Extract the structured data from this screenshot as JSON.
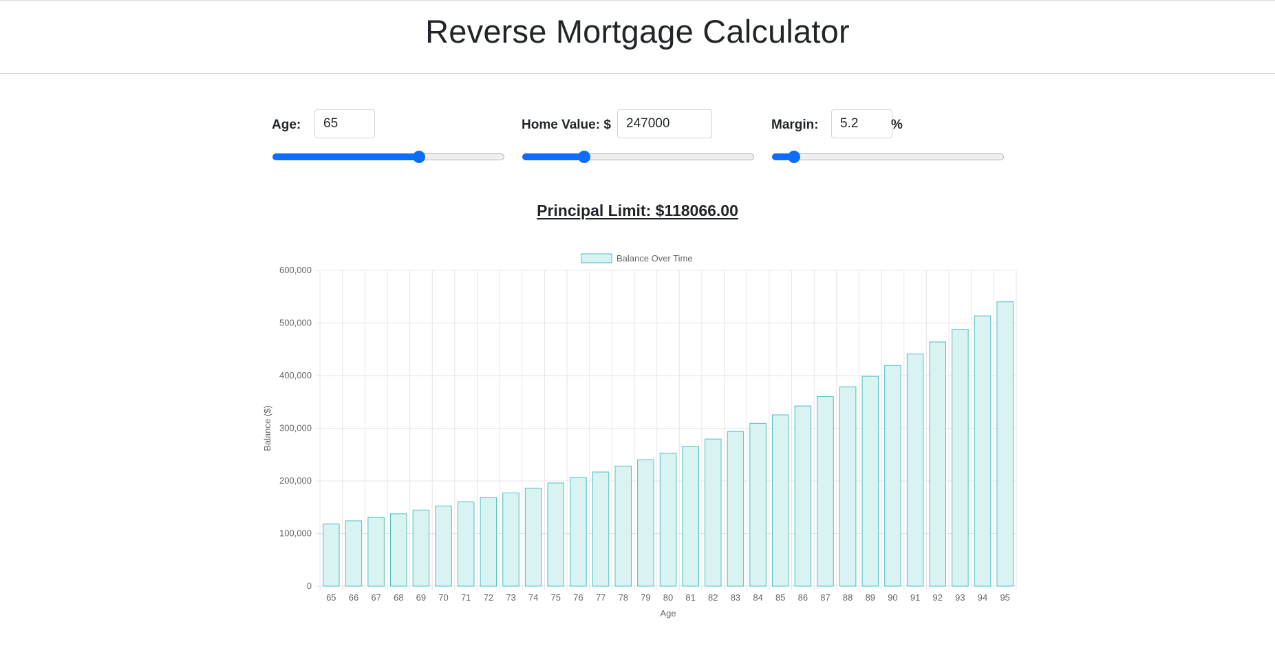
{
  "title": "Reverse Mortgage Calculator",
  "age": {
    "label": "Age:",
    "value": "65",
    "slider_fraction": 0.645
  },
  "home_value": {
    "label": "Home Value: $",
    "value": "247000",
    "slider_fraction": 0.254
  },
  "margin": {
    "label": "Margin:",
    "value": "5.2",
    "suffix": "%",
    "slider_fraction": 0.074
  },
  "principal_limit": "Principal Limit: $118066.00",
  "colors": {
    "accent": "#0d6efd",
    "bar_fill": "#d9f2f2",
    "bar_stroke": "#4bc0c0"
  },
  "chart_data": {
    "type": "bar",
    "xlabel": "Age",
    "ylabel": "Balance ($)",
    "ylim": [
      0,
      600000
    ],
    "y_ticks": [
      "0",
      "100,000",
      "200,000",
      "300,000",
      "400,000",
      "500,000",
      "600,000"
    ],
    "legend": "top",
    "grid": true,
    "categories": [
      "65",
      "66",
      "67",
      "68",
      "69",
      "70",
      "71",
      "72",
      "73",
      "74",
      "75",
      "76",
      "77",
      "78",
      "79",
      "80",
      "81",
      "82",
      "83",
      "84",
      "85",
      "86",
      "87",
      "88",
      "89",
      "90",
      "91",
      "92",
      "93",
      "94",
      "95"
    ],
    "series": [
      {
        "name": "Balance Over Time",
        "values": [
          118066,
          124206,
          130665,
          137460,
          144608,
          152127,
          160038,
          168360,
          177115,
          186325,
          196014,
          206207,
          216929,
          228210,
          240076,
          252560,
          265694,
          279510,
          294045,
          309335,
          325421,
          342343,
          360145,
          378872,
          398573,
          419299,
          441103,
          464040,
          488170,
          513555,
          540260
        ]
      }
    ]
  }
}
